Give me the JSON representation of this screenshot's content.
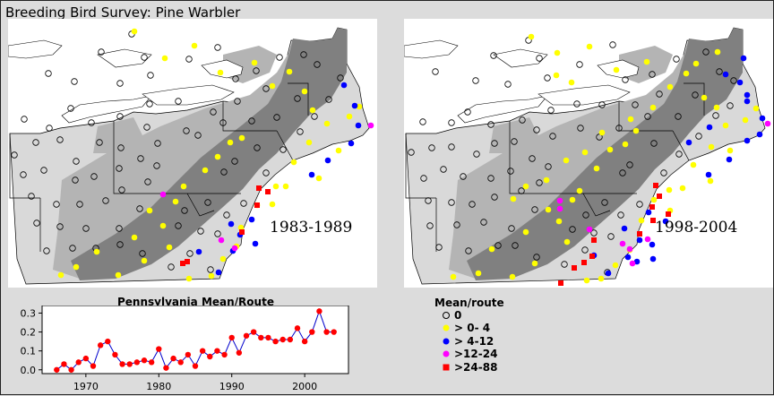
{
  "title": "Breeding Bird Survey: Pine Warbler",
  "maps": [
    {
      "period_label": "1983-1989"
    },
    {
      "period_label": "1998-2004"
    }
  ],
  "legend": {
    "title": "Mean/route",
    "items": [
      {
        "label": "0",
        "symbol": "open-circle",
        "color": "#000000"
      },
      {
        "label": "> 0- 4",
        "symbol": "filled-circle",
        "color": "#ffff00"
      },
      {
        "label": "> 4-12",
        "symbol": "filled-circle",
        "color": "#0000ff"
      },
      {
        "label": ">12-24",
        "symbol": "filled-circle",
        "color": "#ff00ff"
      },
      {
        "label": ">24-88",
        "symbol": "filled-square",
        "color": "#ff0000"
      }
    ]
  },
  "colors": {
    "background": "#dcdcdc",
    "water": "#ffffff",
    "land": "#d9d9d9",
    "abundance_light": "#b4b4b4",
    "abundance_dark": "#808080",
    "series_line": "#0000cc",
    "series_marker": "#ff0000"
  },
  "chart_data": {
    "type": "line",
    "title": "Pennsylvania Mean/Route",
    "xlabel": "",
    "ylabel": "",
    "xlim": [
      1964,
      2006
    ],
    "ylim": [
      -0.02,
      0.34
    ],
    "xticks": [
      1970,
      1980,
      1990,
      2000
    ],
    "yticks": [
      0.0,
      0.1,
      0.2,
      0.3
    ],
    "ytick_labels": [
      "0.0",
      "0.1",
      "0.2",
      "0.3"
    ],
    "x": [
      1966,
      1967,
      1968,
      1969,
      1970,
      1971,
      1972,
      1973,
      1974,
      1975,
      1976,
      1977,
      1978,
      1979,
      1980,
      1981,
      1982,
      1983,
      1984,
      1985,
      1986,
      1987,
      1988,
      1989,
      1990,
      1991,
      1992,
      1993,
      1994,
      1995,
      1996,
      1997,
      1998,
      1999,
      2000,
      2001,
      2002,
      2003,
      2004
    ],
    "series": [
      {
        "values": [
          0.0,
          0.03,
          0.0,
          0.04,
          0.06,
          0.02,
          0.13,
          0.15,
          0.08,
          0.03,
          0.03,
          0.04,
          0.05,
          0.04,
          0.11,
          0.01,
          0.06,
          0.04,
          0.08,
          0.02,
          0.1,
          0.07,
          0.1,
          0.08,
          0.17,
          0.09,
          0.18,
          0.2,
          0.17,
          0.17,
          0.15,
          0.16,
          0.16,
          0.22,
          0.15,
          0.2,
          0.31,
          0.2,
          0.2
        ]
      }
    ],
    "grid": false
  }
}
